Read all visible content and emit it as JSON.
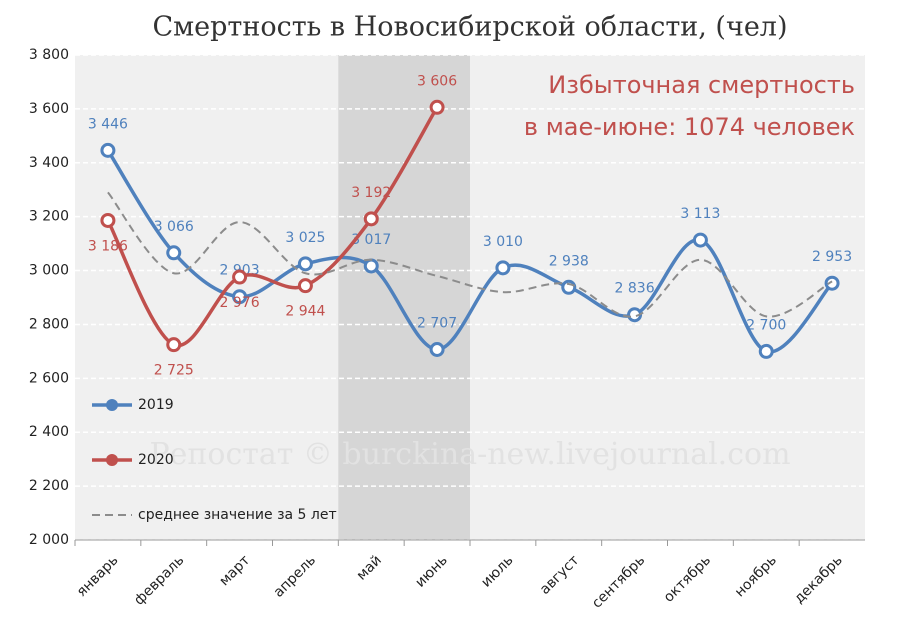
{
  "chart_data": {
    "type": "line",
    "title": "Смертность в Новосибирской области, (чел)",
    "annotations": [
      "Избыточная смертность",
      "в мае-июне: 1074 человек"
    ],
    "watermark": "Репостат © burckina-new.livejournal.com",
    "categories": [
      "январь",
      "февраль",
      "март",
      "апрель",
      "май",
      "июнь",
      "июль",
      "август",
      "сентябрь",
      "октябрь",
      "ноябрь",
      "декабрь"
    ],
    "highlight": {
      "from": 4,
      "to": 5
    },
    "ylim": [
      2000,
      3800
    ],
    "yticks": [
      {
        "value": 2000,
        "label": "2 000"
      },
      {
        "value": 2200,
        "label": "2 200"
      },
      {
        "value": 2400,
        "label": "2 400"
      },
      {
        "value": 2600,
        "label": "2 600"
      },
      {
        "value": 2800,
        "label": "2 800"
      },
      {
        "value": 3000,
        "label": "3 000"
      },
      {
        "value": 3200,
        "label": "3 200"
      },
      {
        "value": 3400,
        "label": "3 400"
      },
      {
        "value": 3600,
        "label": "3 600"
      },
      {
        "value": 3800,
        "label": "3 800"
      }
    ],
    "grid": true,
    "series": [
      {
        "name": "2019",
        "color": "#4f81bd",
        "markers": true,
        "values": [
          3446,
          3066,
          2903,
          3025,
          3017,
          2707,
          3010,
          2938,
          2836,
          3113,
          2700,
          2953
        ],
        "value_labels": [
          "3 446",
          "3 066",
          "2 903",
          "3 025",
          "3 017",
          "2 707",
          "3 010",
          "2 938",
          "2 836",
          "3 113",
          "2 700",
          "2 953"
        ]
      },
      {
        "name": "2020",
        "color": "#c0504d",
        "markers": true,
        "values": [
          3186,
          2725,
          2976,
          2944,
          3192,
          3606,
          null,
          null,
          null,
          null,
          null,
          null
        ],
        "value_labels": [
          "3 186",
          "2 725",
          "2 976",
          "2 944",
          "3 192",
          "3 606",
          null,
          null,
          null,
          null,
          null,
          null
        ]
      },
      {
        "name": "среднее значение за 5 лет",
        "color": "#8c8c8c",
        "dashed": true,
        "markers": false,
        "values": [
          3290,
          2990,
          3180,
          2990,
          3040,
          2980,
          2920,
          2950,
          2830,
          3040,
          2830,
          2960
        ]
      }
    ]
  }
}
